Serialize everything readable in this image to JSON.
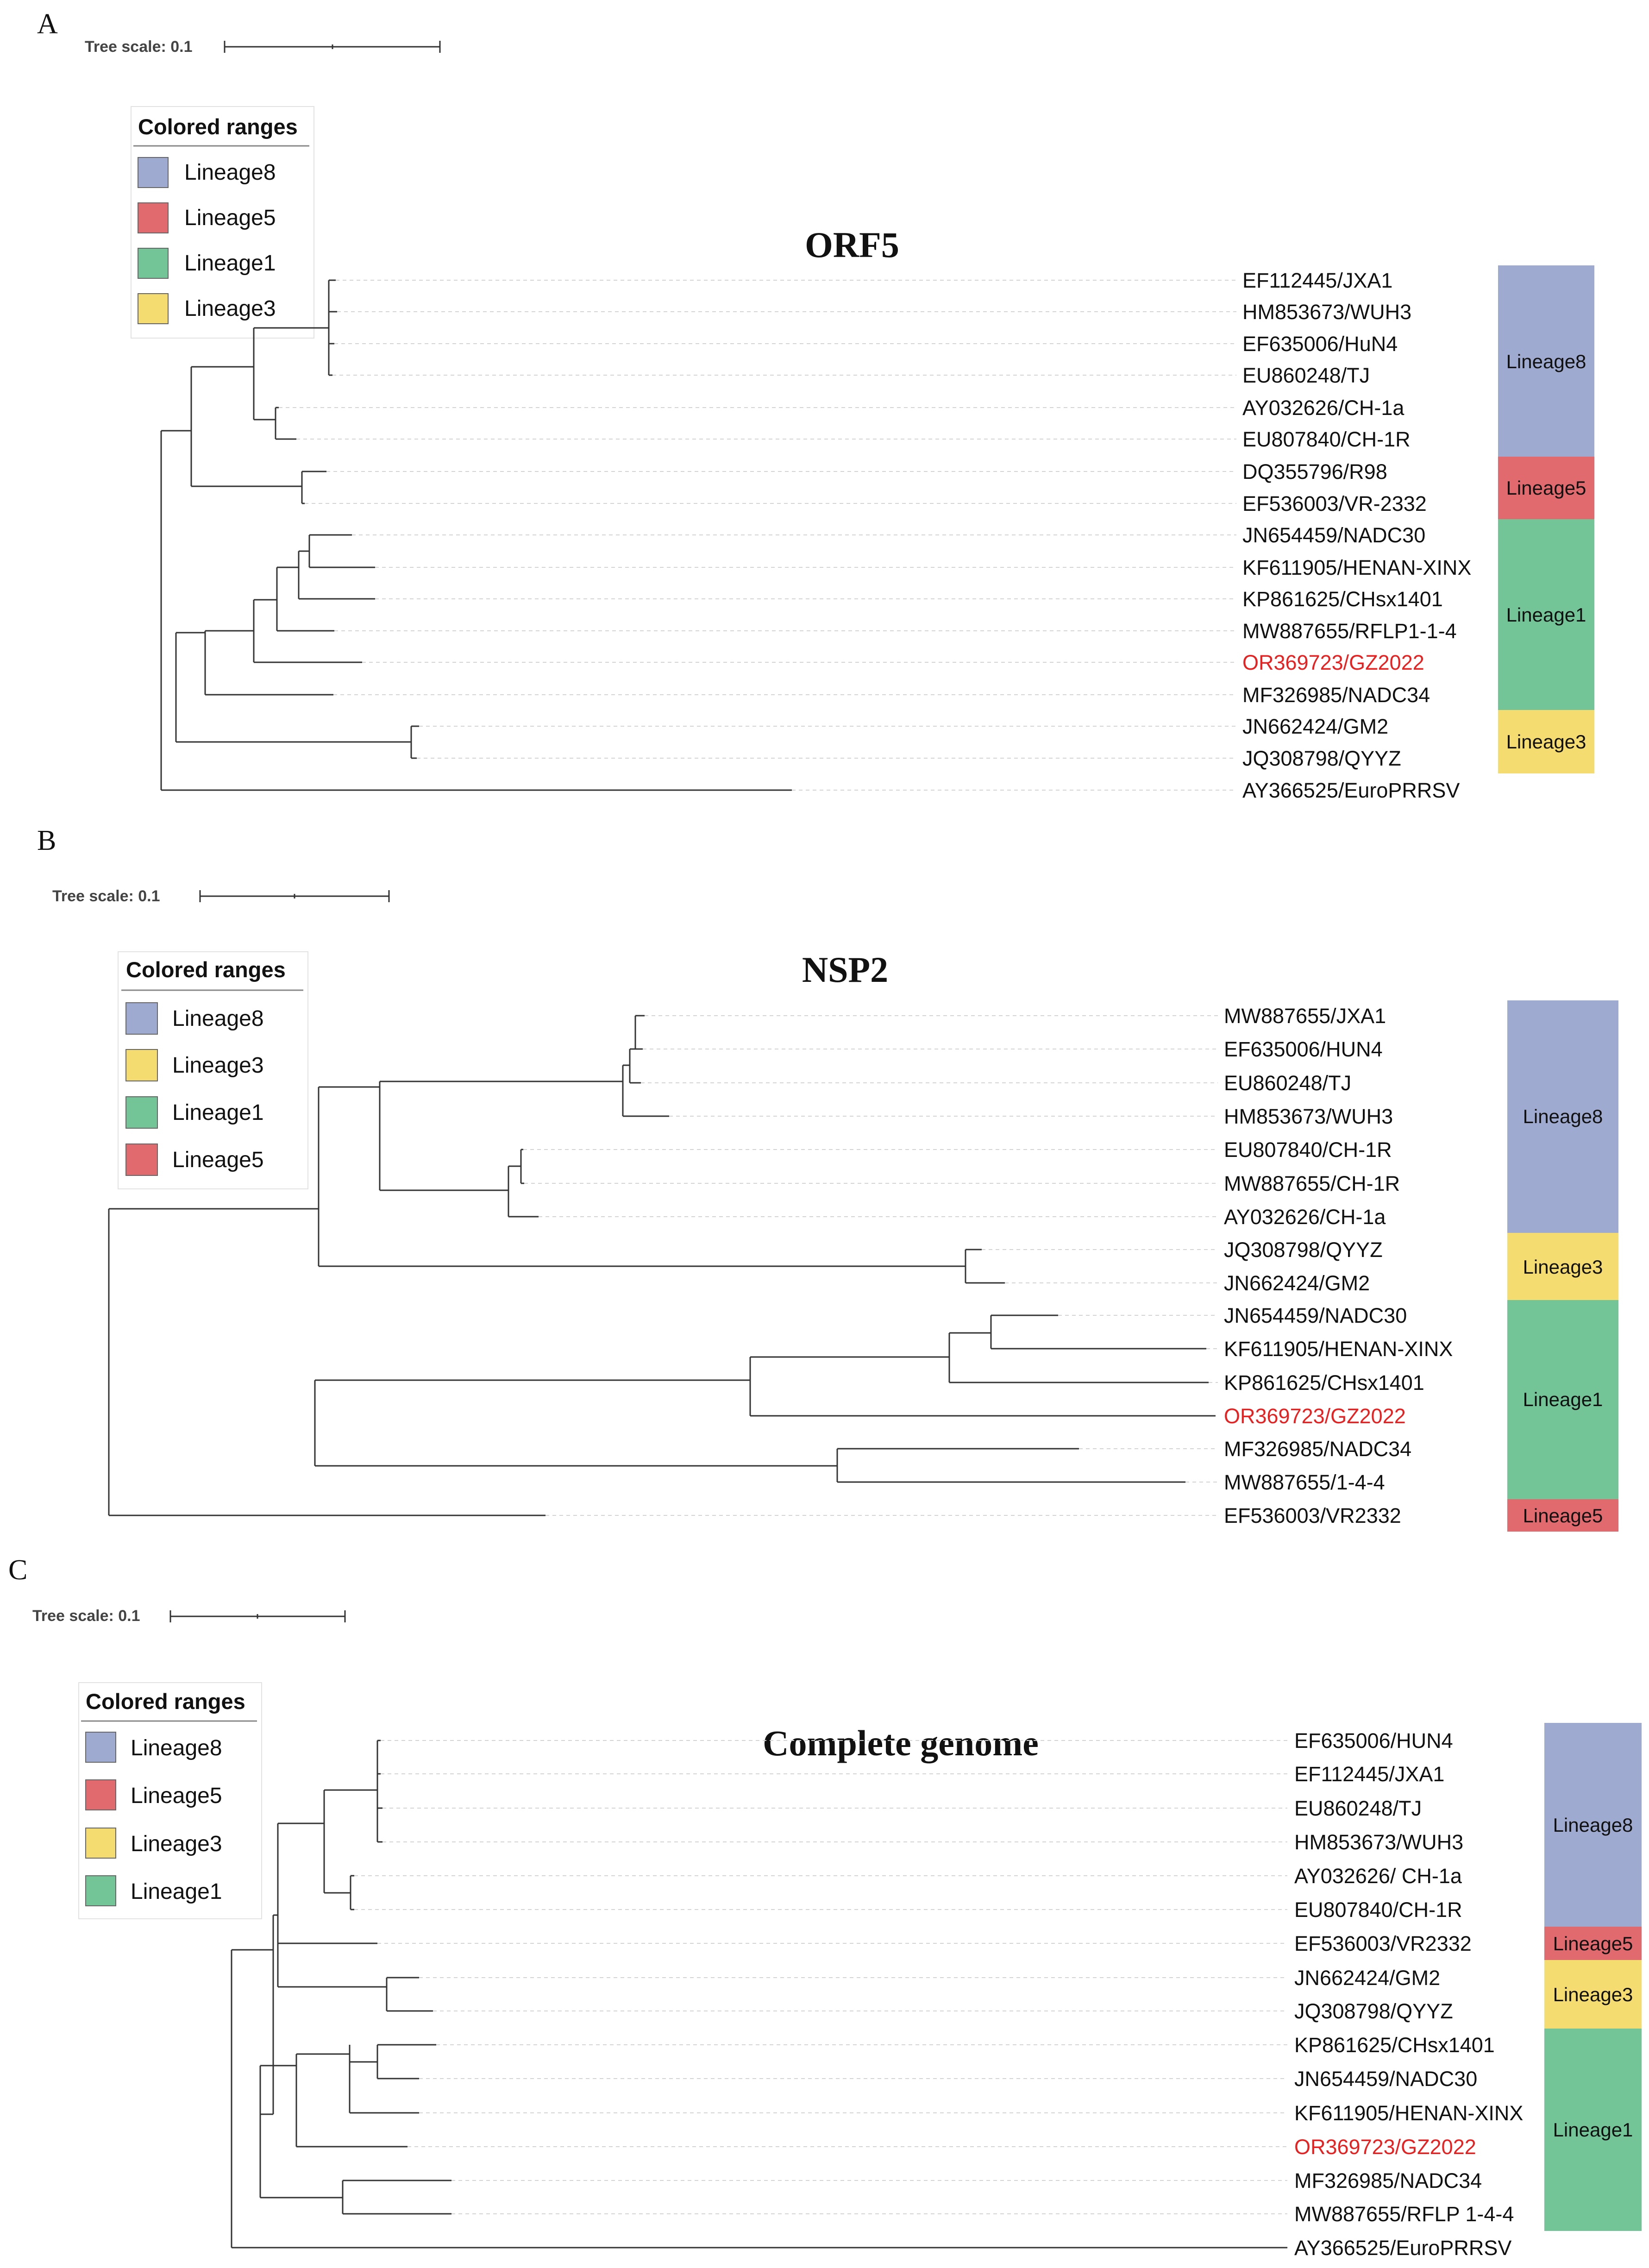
{
  "colors": {
    "Lineage8": "#9faad0",
    "Lineage5": "#e06a6d",
    "Lineage1": "#73c497",
    "Lineage3": "#f5dc70",
    "highlight": "#e8201f"
  },
  "panels": [
    {
      "letter": "A",
      "title": "ORF5",
      "scale_label": "Tree scale: 0.1",
      "legend_title": "Colored ranges",
      "legend": [
        "Lineage8",
        "Lineage5",
        "Lineage1",
        "Lineage3"
      ],
      "leaves": [
        "EF112445/JXA1",
        "HM853673/WUH3",
        "EF635006/HuN4",
        "EU860248/TJ",
        "AY032626/CH-1a",
        "EU807840/CH-1R",
        "DQ355796/R98",
        "EF536003/VR-2332",
        "JN654459/NADC30",
        "KF611905/HENAN-XINX",
        "KP861625/CHsx1401",
        "MW887655/RFLP1-1-4",
        "OR369723/GZ2022",
        "MF326985/NADC34",
        "JN662424/GM2",
        "JQ308798/QYYZ",
        "AY366525/EuroPRRSV"
      ],
      "highlight_leaf": "OR369723/GZ2022",
      "ranges": [
        {
          "label": "Lineage8",
          "first": 0,
          "last": 5
        },
        {
          "label": "Lineage5",
          "first": 6,
          "last": 7
        },
        {
          "label": "Lineage1",
          "first": 8,
          "last": 13
        },
        {
          "label": "Lineage3",
          "first": 14,
          "last": 15
        }
      ]
    },
    {
      "letter": "B",
      "title": "NSP2",
      "scale_label": "Tree scale: 0.1",
      "legend_title": "Colored ranges",
      "legend": [
        "Lineage8",
        "Lineage3",
        "Lineage1",
        "Lineage5"
      ],
      "leaves": [
        "MW887655/JXA1",
        "EF635006/HUN4",
        "EU860248/TJ",
        "HM853673/WUH3",
        "EU807840/CH-1R",
        "MW887655/CH-1R",
        "AY032626/CH-1a",
        "JQ308798/QYYZ",
        "JN662424/GM2",
        "JN654459/NADC30",
        "KF611905/HENAN-XINX",
        "KP861625/CHsx1401",
        "OR369723/GZ2022",
        "MF326985/NADC34",
        "MW887655/1-4-4",
        "EF536003/VR2332"
      ],
      "highlight_leaf": "OR369723/GZ2022",
      "ranges": [
        {
          "label": "Lineage8",
          "first": 0,
          "last": 6
        },
        {
          "label": "Lineage3",
          "first": 7,
          "last": 8
        },
        {
          "label": "Lineage1",
          "first": 9,
          "last": 14
        },
        {
          "label": "Lineage5",
          "first": 15,
          "last": 15
        }
      ]
    },
    {
      "letter": "C",
      "title": "Complete genome",
      "scale_label": "Tree scale: 0.1",
      "legend_title": "Colored ranges",
      "legend": [
        "Lineage8",
        "Lineage5",
        "Lineage3",
        "Lineage1"
      ],
      "leaves": [
        "EF635006/HUN4",
        "EF112445/JXA1",
        "EU860248/TJ",
        "HM853673/WUH3",
        "AY032626/ CH-1a",
        "EU807840/CH-1R",
        "EF536003/VR2332",
        "JN662424/GM2",
        "JQ308798/QYYZ",
        "KP861625/CHsx1401",
        "JN654459/NADC30",
        "KF611905/HENAN-XINX",
        "OR369723/GZ2022",
        "MF326985/NADC34",
        "MW887655/RFLP 1-4-4",
        "AY366525/EuroPRRSV"
      ],
      "highlight_leaf": "OR369723/GZ2022",
      "ranges": [
        {
          "label": "Lineage8",
          "first": 0,
          "last": 5
        },
        {
          "label": "Lineage5",
          "first": 6,
          "last": 6
        },
        {
          "label": "Lineage3",
          "first": 7,
          "last": 8
        },
        {
          "label": "Lineage1",
          "first": 9,
          "last": 14
        }
      ]
    }
  ]
}
